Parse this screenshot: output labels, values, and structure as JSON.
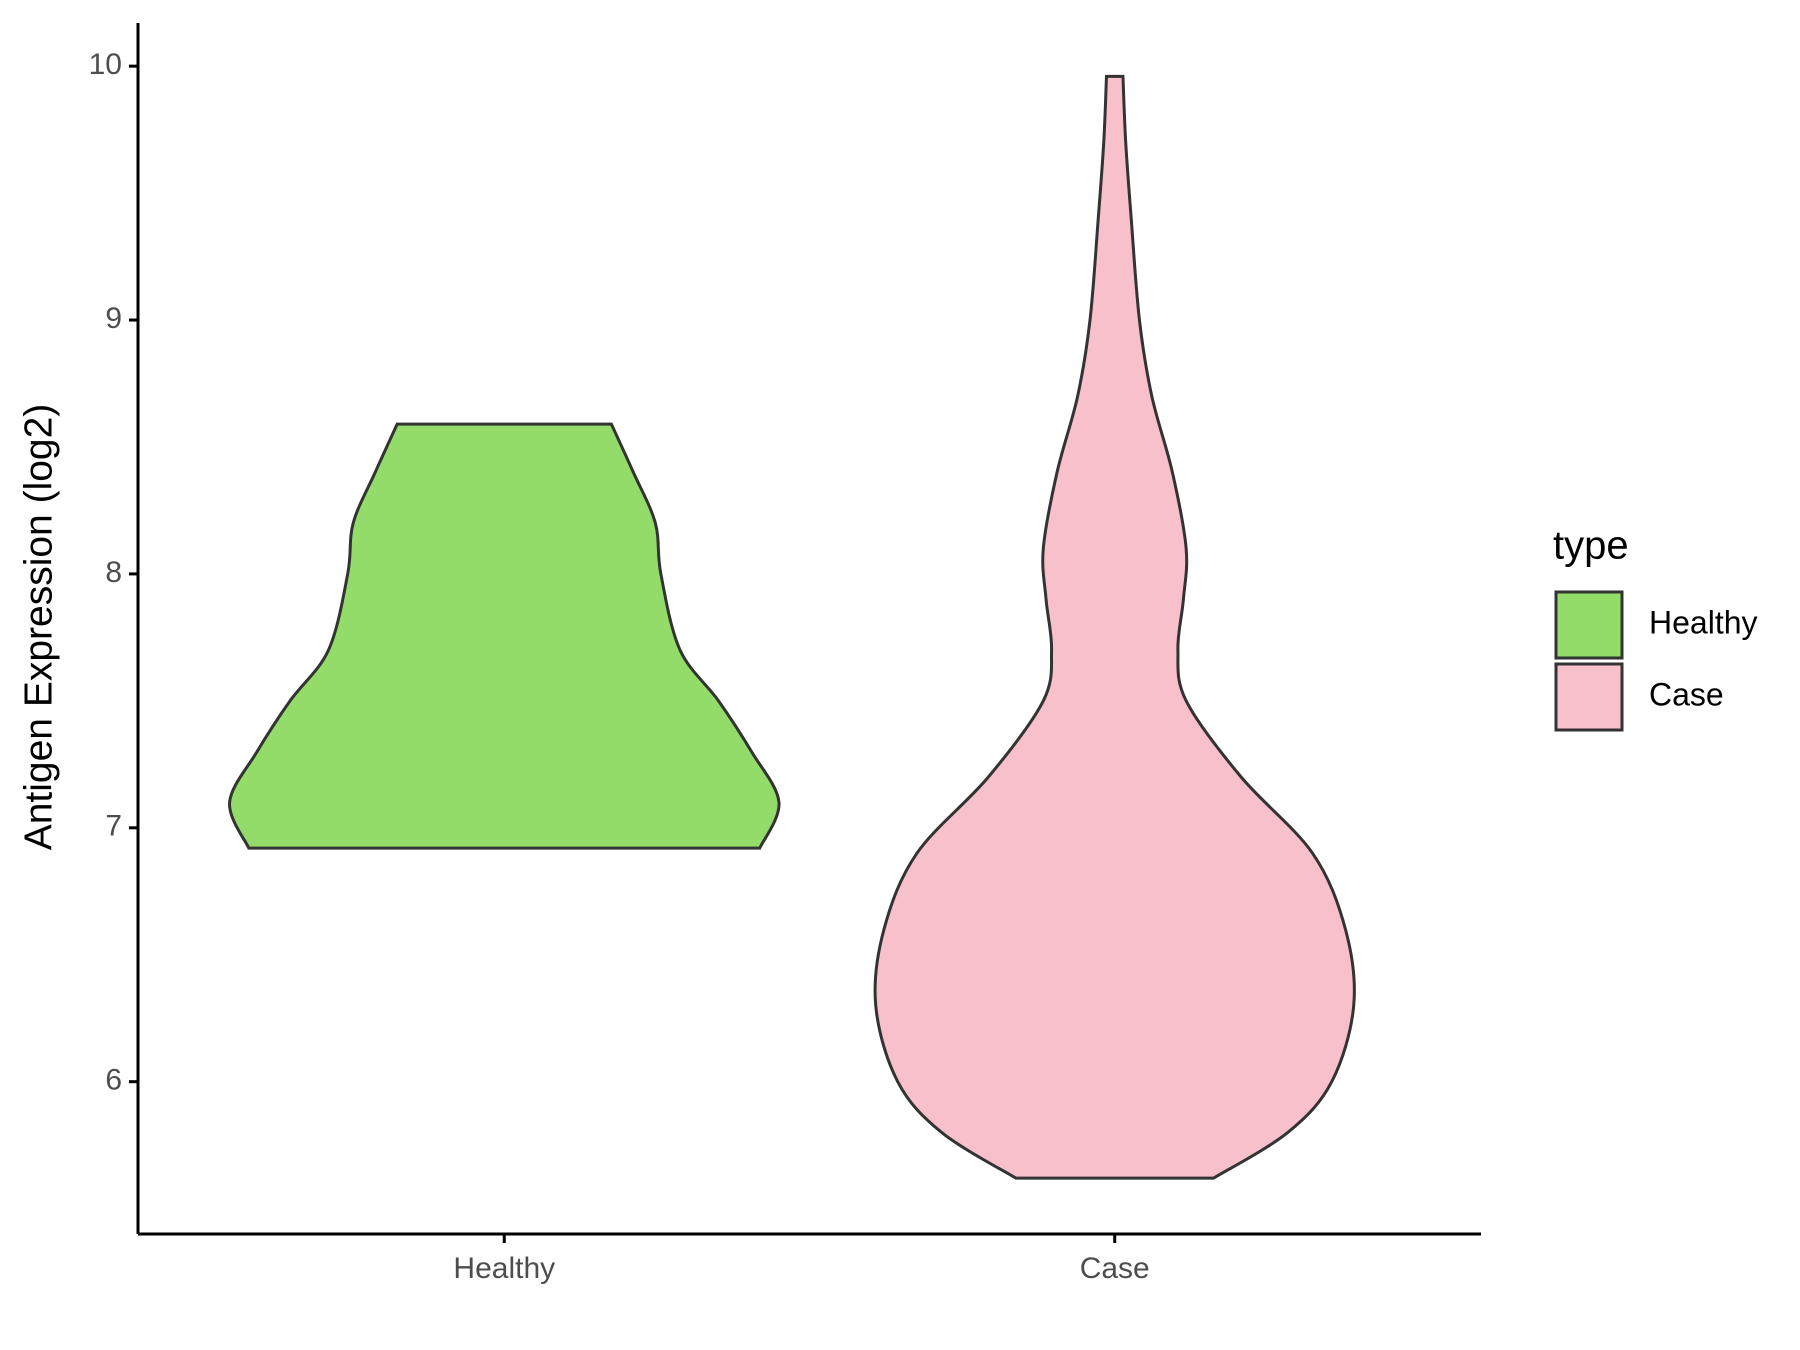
{
  "chart_data": {
    "type": "violin",
    "y_label": "Antigen Expression (log2)",
    "categories": [
      "Healthy",
      "Case"
    ],
    "legend_title": "type",
    "legend_position": "right",
    "ylim": [
      5.4,
      10.17
    ],
    "yticks": [
      6,
      7,
      8,
      9,
      10
    ],
    "grid": false,
    "series": [
      {
        "name": "Healthy",
        "color": "#93dc6a",
        "y": [
          6.92,
          7.1,
          7.3,
          7.5,
          7.7,
          8.0,
          8.2,
          8.4,
          8.59
        ],
        "density": [
          0.93,
          1.0,
          0.9,
          0.78,
          0.64,
          0.57,
          0.55,
          0.47,
          0.39
        ]
      },
      {
        "name": "Case",
        "color": "#f7c0cb",
        "y": [
          5.62,
          5.8,
          6.0,
          6.3,
          6.6,
          6.9,
          7.2,
          7.5,
          7.7,
          7.9,
          8.1,
          8.4,
          8.7,
          9.0,
          9.4,
          9.7,
          9.96
        ],
        "density": [
          0.36,
          0.63,
          0.79,
          0.87,
          0.84,
          0.72,
          0.46,
          0.26,
          0.23,
          0.25,
          0.26,
          0.21,
          0.135,
          0.09,
          0.06,
          0.04,
          0.03
        ]
      }
    ]
  }
}
